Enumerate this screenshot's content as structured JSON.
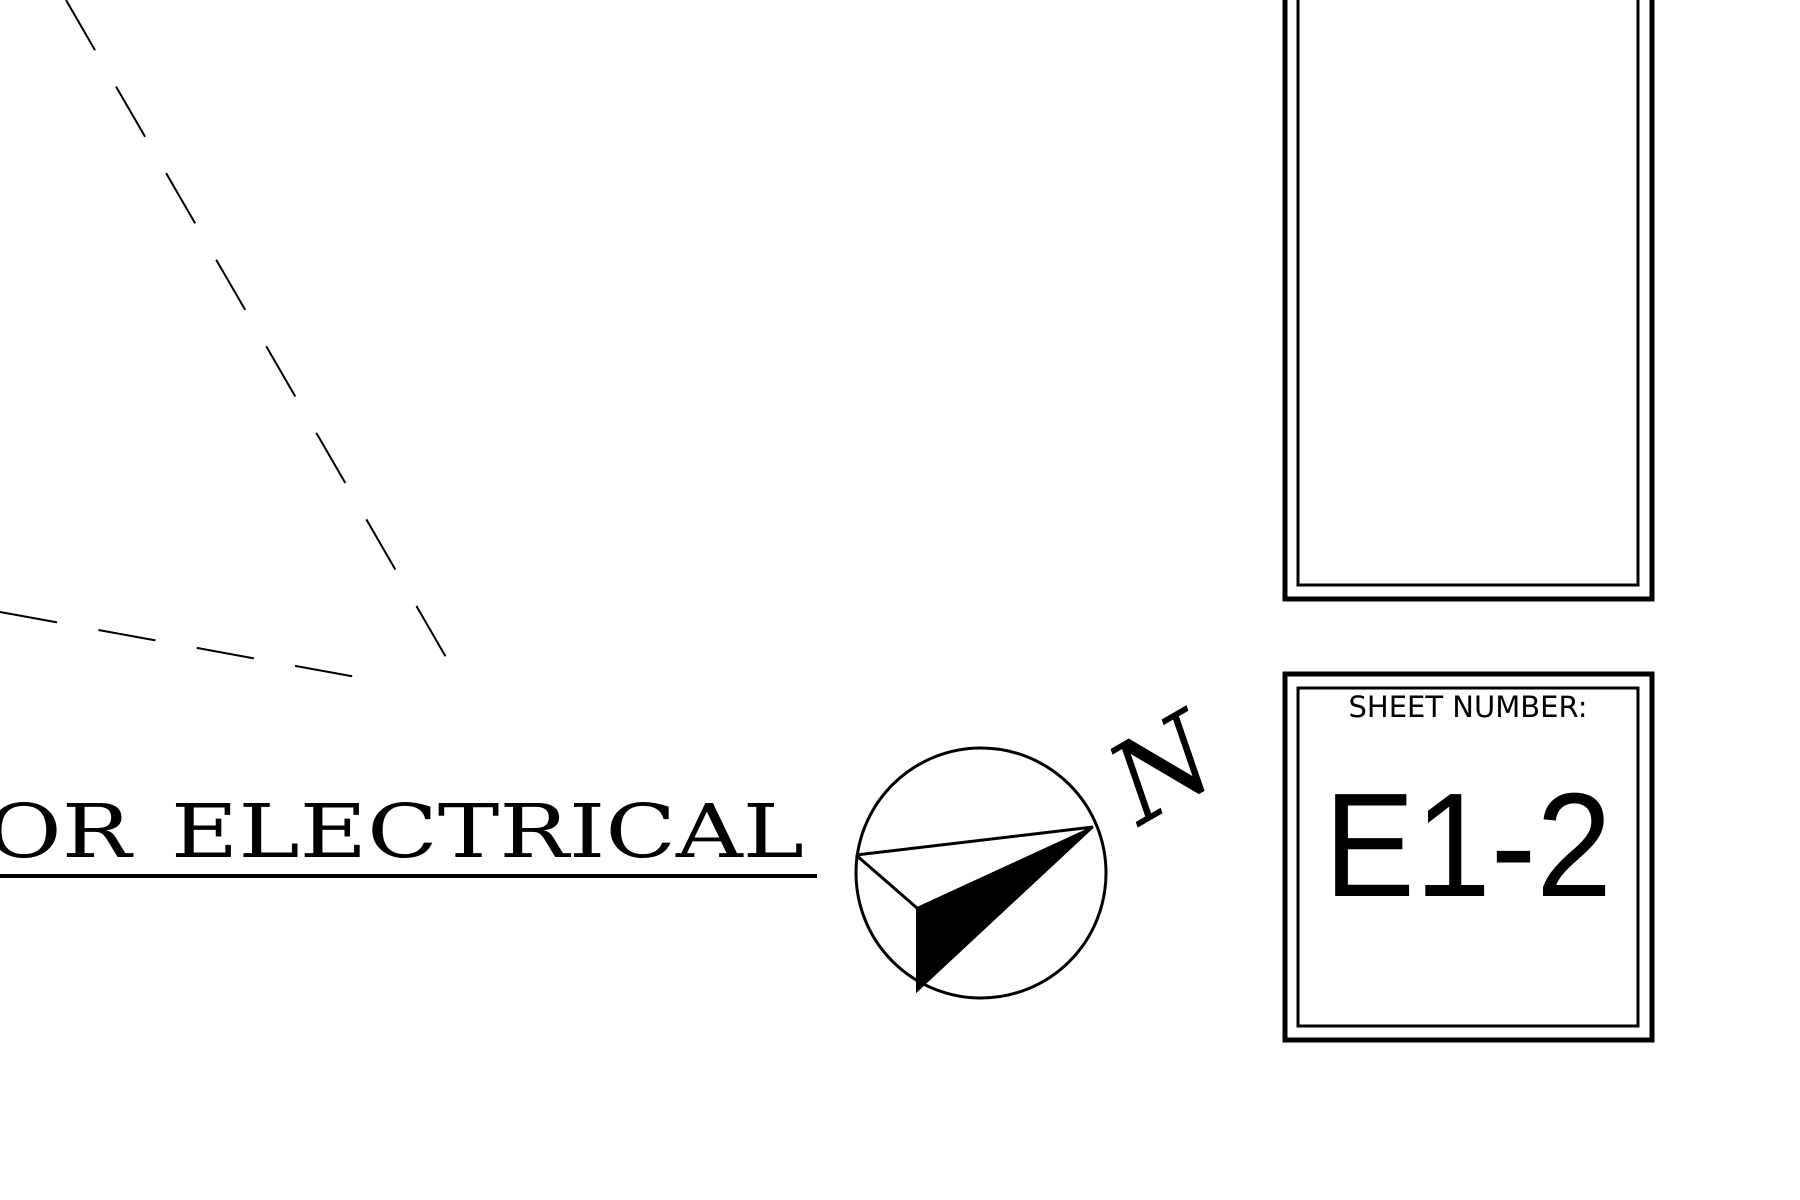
{
  "title": {
    "prefix": "OR",
    "main": "ELECTRICAL"
  },
  "north_arrow": {
    "letter": "N",
    "icon": "north-arrow-icon"
  },
  "sheet": {
    "label": "SHEET NUMBER:",
    "number": "E1-2"
  },
  "colors": {
    "ink": "#000000",
    "paper": "#ffffff"
  }
}
